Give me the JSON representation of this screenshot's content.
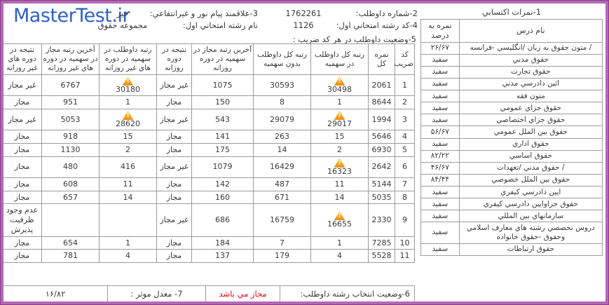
{
  "site": {
    "logo_text": "MasterTest.ir"
  },
  "colors": {
    "accent": "#b468b4",
    "logo": "#2f5fc9",
    "red": "#e30613",
    "warn": "#ee8b0e",
    "grid": "#9c9c9c",
    "text": "#3a3a3a"
  },
  "header": {
    "section1_title": "1-نمرات اكتسابي",
    "candidate_number_label": "2-شماره داوطلب:",
    "candidate_number": "1762261",
    "payamnoor_label": "3-علاقمند پيام نور و غيرانتفاعي:",
    "payamnoor_value": "خير",
    "first_field_code_label": "4-كد رشته امتحاني اول:",
    "first_field_code": "1126",
    "first_field_name_label": "نام رشته امتحاني اول:",
    "first_field_name": "مجموعه حقوق",
    "section5_title": "5-وضعيت داوطلب در هر كد ضريب :"
  },
  "scores_table": {
    "course_header": "نام درس",
    "score_header": "نمره به درصد",
    "rows": [
      {
        "course": "/ متون حقوق به زبان /انگليسي -فرانسه",
        "score": "۲۶/۶۷"
      },
      {
        "course": "حقوق مدني",
        "score": "سفيد"
      },
      {
        "course": "حقوق تجارت",
        "score": "سفيد"
      },
      {
        "course": "ائين دادرسي مدني",
        "score": "سفيد"
      },
      {
        "course": "متون فقه",
        "score": "سفيد"
      },
      {
        "course": "حقوق جزاي عمومي",
        "score": "سفيد"
      },
      {
        "course": "حقوق جزاي اختصاصي",
        "score": "سفيد"
      },
      {
        "course": "حقوق بين الملل عمومي",
        "score": "۵۶/۶۷"
      },
      {
        "course": "حقوق اداري",
        "score": "سفيد"
      },
      {
        "course": "حقوق اساسي",
        "score": "۸۲/۲۲"
      },
      {
        "course": "/ حقوق مدني /تعهدات",
        "score": "۴۶/۶۷"
      },
      {
        "course": "حقوق بين الملل خصوصي",
        "score": "۸۴/۴۴"
      },
      {
        "course": "ايين دادرسي كيفري",
        "score": "سفيد"
      },
      {
        "course": "حقوق جزاوايين دادرسي كيفري",
        "score": "سفيد"
      },
      {
        "course": "سازمانهاي بين المللي",
        "score": "سفيد"
      },
      {
        "course": "دروس تخصصي رشته هاي معارف اسلامي وحقوق -حقوق خانواده",
        "score": "سفيد"
      },
      {
        "course": "حقوق ارتباطات",
        "score": "سفيد"
      }
    ]
  },
  "main_table": {
    "headers": [
      "كد ضريب",
      "نمره كل",
      "رتبه كل داوطلب در سهميه",
      "رتبه كل داوطلب بدون سهميه",
      "آخرين رتبه مجاز در سهميه در دوره روزانه",
      "نتيجه در دوره روزانه",
      "رتبه داوطلب در سهميه در دوره هاي غير روزانه",
      "آخرين رتبه مجاز در سهميه در دوره هاي غير روزانه",
      "نتيجه در دوره هاي غير روزانه"
    ],
    "rows": [
      [
        "1",
        "2061",
        {
          "v": "30498",
          "warn": true
        },
        "30593",
        "1075",
        "غير مجاز",
        {
          "v": "30180",
          "warn": true
        },
        "6767",
        "غير مجاز"
      ],
      [
        "2",
        "8644",
        "1",
        "8",
        "150",
        "مجاز",
        "1",
        "951",
        "مجاز"
      ],
      [
        "3",
        "1994",
        {
          "v": "29017",
          "warn": true
        },
        "29079",
        "543",
        "غير مجاز",
        {
          "v": "28620",
          "warn": true
        },
        "5053",
        "غير مجاز"
      ],
      [
        "4",
        "5646",
        "15",
        "263",
        "141",
        "مجاز",
        "15",
        "918",
        "مجاز"
      ],
      [
        "5",
        "6930",
        "2",
        "14",
        "175",
        "مجاز",
        "2",
        "1130",
        "مجاز"
      ],
      [
        "6",
        "2642",
        {
          "v": "16323",
          "warn": true
        },
        "16429",
        "1079",
        "غير مجاز",
        "416",
        "480",
        "مجاز"
      ],
      [
        "7",
        "5144",
        "11",
        "487",
        "142",
        "مجاز",
        "11",
        "608",
        "مجاز"
      ],
      [
        "8",
        "5035",
        "14",
        "671",
        "160",
        "مجاز",
        "14",
        "657",
        "مجاز"
      ],
      [
        "9",
        "2330",
        {
          "v": "16655",
          "warn": true
        },
        "16759",
        "686",
        "غير مجاز",
        "",
        "",
        "عدم وجود ظرفيت پذيرش"
      ],
      [
        "10",
        "7285",
        "1",
        "7",
        "184",
        "مجاز",
        "1",
        "654",
        "مجاز"
      ],
      [
        "11",
        "5528",
        "4",
        "179",
        "137",
        "مجاز",
        "4",
        "781",
        "مجاز"
      ]
    ]
  },
  "footer": {
    "status_label": "6-وضعيت انتخاب رشته داوطلب:",
    "status_value": "مجاز مي باشد",
    "gpa_label": "7- معدل موثر :",
    "gpa_value": "۱۶/۸۲"
  }
}
